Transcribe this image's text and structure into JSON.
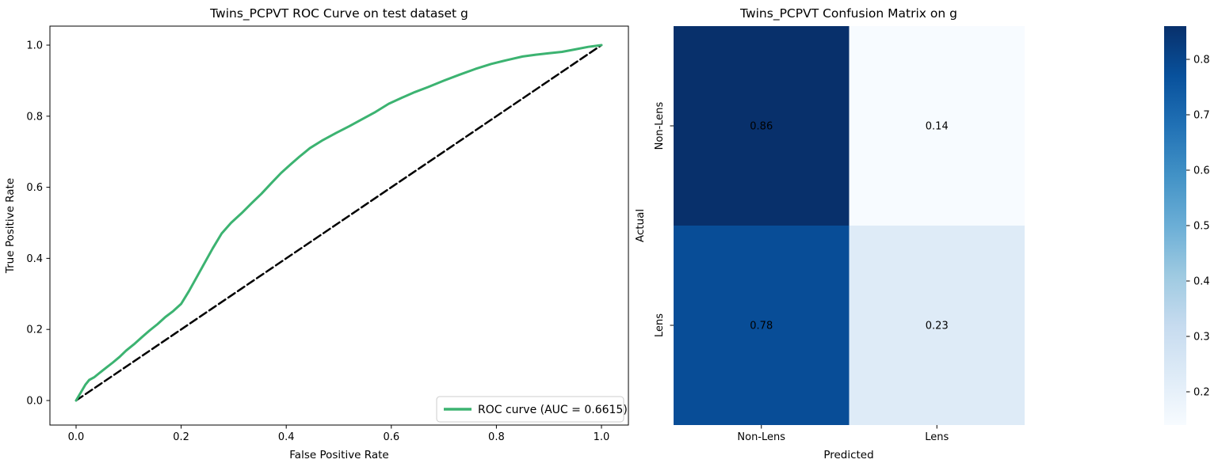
{
  "chart_data": [
    {
      "type": "line",
      "title": "Twins_PCPVT ROC Curve on test dataset g",
      "xlabel": "False Positive Rate",
      "ylabel": "True Positive Rate",
      "xlim": [
        -0.05,
        1.05
      ],
      "ylim": [
        -0.05,
        1.05
      ],
      "x_ticks": [
        0.0,
        0.2,
        0.4,
        0.6,
        0.8,
        1.0
      ],
      "y_ticks": [
        0.0,
        0.2,
        0.4,
        0.6,
        0.8,
        1.0
      ],
      "grid": false,
      "legend_position": "lower right",
      "auc": 0.6615,
      "series": [
        {
          "name": "ROC curve (AUC = 0.6615)",
          "color": "#3cb371",
          "style": "solid",
          "points": [
            [
              0.0,
              0.0
            ],
            [
              0.008,
              0.02
            ],
            [
              0.018,
              0.045
            ],
            [
              0.025,
              0.058
            ],
            [
              0.035,
              0.066
            ],
            [
              0.045,
              0.078
            ],
            [
              0.057,
              0.092
            ],
            [
              0.07,
              0.107
            ],
            [
              0.083,
              0.123
            ],
            [
              0.095,
              0.14
            ],
            [
              0.11,
              0.158
            ],
            [
              0.125,
              0.178
            ],
            [
              0.14,
              0.197
            ],
            [
              0.155,
              0.215
            ],
            [
              0.17,
              0.235
            ],
            [
              0.185,
              0.252
            ],
            [
              0.2,
              0.272
            ],
            [
              0.215,
              0.308
            ],
            [
              0.23,
              0.348
            ],
            [
              0.245,
              0.388
            ],
            [
              0.26,
              0.428
            ],
            [
              0.277,
              0.47
            ],
            [
              0.295,
              0.5
            ],
            [
              0.315,
              0.527
            ],
            [
              0.334,
              0.555
            ],
            [
              0.353,
              0.582
            ],
            [
              0.372,
              0.612
            ],
            [
              0.39,
              0.64
            ],
            [
              0.408,
              0.664
            ],
            [
              0.425,
              0.686
            ],
            [
              0.445,
              0.71
            ],
            [
              0.47,
              0.733
            ],
            [
              0.495,
              0.753
            ],
            [
              0.52,
              0.772
            ],
            [
              0.545,
              0.792
            ],
            [
              0.57,
              0.812
            ],
            [
              0.595,
              0.835
            ],
            [
              0.62,
              0.852
            ],
            [
              0.645,
              0.868
            ],
            [
              0.67,
              0.882
            ],
            [
              0.7,
              0.9
            ],
            [
              0.73,
              0.917
            ],
            [
              0.76,
              0.933
            ],
            [
              0.79,
              0.947
            ],
            [
              0.82,
              0.958
            ],
            [
              0.85,
              0.968
            ],
            [
              0.875,
              0.973
            ],
            [
              0.9,
              0.977
            ],
            [
              0.925,
              0.981
            ],
            [
              0.95,
              0.988
            ],
            [
              0.975,
              0.995
            ],
            [
              1.0,
              1.0
            ]
          ]
        },
        {
          "name": "chance-diagonal",
          "color": "#000000",
          "style": "dashed",
          "points": [
            [
              0.0,
              0.0
            ],
            [
              1.0,
              1.0
            ]
          ]
        }
      ]
    },
    {
      "type": "heatmap",
      "title": "Twins_PCPVT Confusion Matrix on g",
      "xlabel": "Predicted",
      "ylabel": "Actual",
      "x_categories": [
        "Non-Lens",
        "Lens"
      ],
      "y_categories": [
        "Non-Lens",
        "Lens"
      ],
      "values": [
        [
          0.86,
          0.14
        ],
        [
          0.78,
          0.23
        ]
      ],
      "vmin": 0.14,
      "vmax": 0.86,
      "colormap": "Blues",
      "colorbar_ticks": [
        0.2,
        0.3,
        0.4,
        0.5,
        0.6,
        0.7,
        0.8
      ],
      "cell_colors": [
        [
          "#08306b",
          "#f7fbff"
        ],
        [
          "#084d97",
          "#deebf7"
        ]
      ],
      "cell_text_colors": [
        [
          "#ffffff",
          "#262626"
        ],
        [
          "#ffffff",
          "#262626"
        ]
      ],
      "colorbar_gradient": [
        "#f7fbff",
        "#deebf7",
        "#c6dbef",
        "#9ecae1",
        "#6baed6",
        "#4292c6",
        "#2171b5",
        "#08519c",
        "#08306b"
      ]
    }
  ]
}
